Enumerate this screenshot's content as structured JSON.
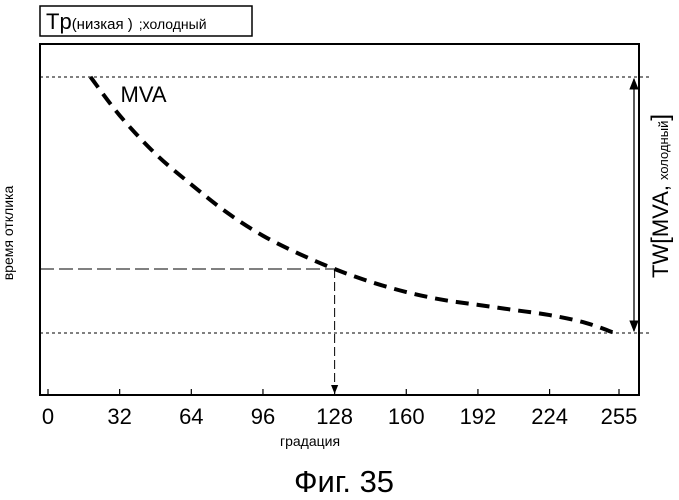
{
  "title": {
    "prefix": "Tp",
    "sub": "(низкая )",
    "suffix": ";холодный"
  },
  "figure_caption": "Фиг. 35",
  "chart_data": {
    "type": "line",
    "title": "Tp(низкая ) ;холодный",
    "xlabel": "градация",
    "ylabel": "время отклика",
    "xlim": [
      0,
      255
    ],
    "x_ticks": [
      "0",
      "32",
      "64",
      "96",
      "128",
      "160",
      "192",
      "224",
      "255"
    ],
    "x_tick_values": [
      0,
      32,
      64,
      96,
      128,
      160,
      192,
      224,
      255
    ],
    "y_scale": "unlabeled, normalized 0 (bottom reference) to 1 (top reference)",
    "grid": false,
    "series": [
      {
        "name": "MVA",
        "style": "dashed",
        "color": "#000000",
        "x": [
          19,
          32,
          48,
          64,
          80,
          96,
          112,
          128,
          144,
          160,
          176,
          192,
          208,
          224,
          240,
          253
        ],
        "y": [
          1.0,
          0.85,
          0.7,
          0.58,
          0.47,
          0.38,
          0.31,
          0.25,
          0.2,
          0.16,
          0.13,
          0.11,
          0.09,
          0.07,
          0.04,
          0.0
        ]
      }
    ],
    "annotations": {
      "marker_x": 128,
      "marker_x_label": "128",
      "measure_label": {
        "main": "TW",
        "bracket_open": "[",
        "inner": "MVA,",
        "sub": "холодный",
        "bracket_close": "]"
      }
    }
  }
}
